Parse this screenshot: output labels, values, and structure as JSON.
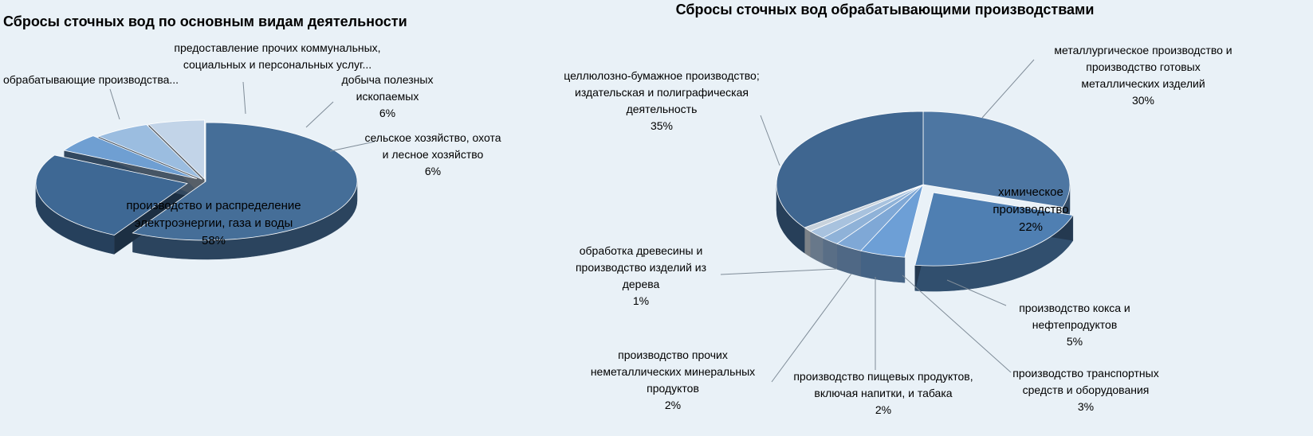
{
  "chart_data": [
    {
      "type": "pie",
      "title": "Сбросы сточных вод по основным видам деятельности",
      "slices": [
        {
          "lines": [
            "производство и распределение",
            "электроэнергии, газа и воды"
          ],
          "value": 58,
          "value_label": "58%",
          "color": "#456e98"
        },
        {
          "lines": [
            "обрабатывающие производства..."
          ],
          "value": 25,
          "value_label": "",
          "color": "#3e6894"
        },
        {
          "lines": [
            "предоставление прочих коммунальных,",
            "социальных и персональных услуг..."
          ],
          "value": 5,
          "value_label": "",
          "color": "#6f9fd2"
        },
        {
          "lines": [
            "добыча полезных",
            "ископаемых"
          ],
          "value": 6,
          "value_label": "6%",
          "color": "#9bbde0"
        },
        {
          "lines": [
            "сельское хозяйство, охота",
            "и лесное хозяйство"
          ],
          "value": 6,
          "value_label": "6%",
          "color": "#c2d4e8"
        }
      ]
    },
    {
      "type": "pie",
      "title": "Сбросы сточных вод обрабатывающими производствами",
      "slices": [
        {
          "lines": [
            "металлургическое производство и",
            "производство готовых",
            "металлических изделий"
          ],
          "value": 30,
          "value_label": "30%",
          "color": "#4d76a2"
        },
        {
          "lines": [
            "химическое",
            "производство"
          ],
          "value": 22,
          "value_label": "22%",
          "color": "#4f7fb2"
        },
        {
          "lines": [
            "производство кокса и",
            "нефтепродуктов"
          ],
          "value": 5,
          "value_label": "5%",
          "color": "#6d9fd6"
        },
        {
          "lines": [
            "производство транспортных",
            "средств и оборудования"
          ],
          "value": 3,
          "value_label": "3%",
          "color": "#7fa8d6"
        },
        {
          "lines": [
            "производство пищевых продуктов,",
            "включая напитки, и табака"
          ],
          "value": 2,
          "value_label": "2%",
          "color": "#8fb2d8"
        },
        {
          "lines": [
            "производство прочих",
            "неметаллических минеральных",
            "продуктов"
          ],
          "value": 2,
          "value_label": "2%",
          "color": "#a8c2de"
        },
        {
          "lines": [
            "обработка древесины и",
            "производство изделий из",
            "дерева"
          ],
          "value": 1,
          "value_label": "1%",
          "color": "#c8d2dc"
        },
        {
          "lines": [
            "целлюлозно-бумажное производство;",
            "издательская и полиграфическая",
            "деятельность"
          ],
          "value": 35,
          "value_label": "35%",
          "color": "#3f6690"
        }
      ]
    }
  ]
}
